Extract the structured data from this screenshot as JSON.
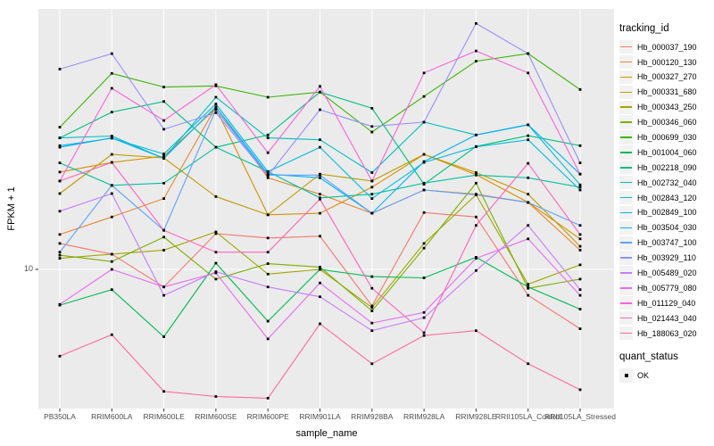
{
  "chart_data": {
    "type": "line",
    "xlabel": "sample_name",
    "ylabel": "FPKM + 1",
    "y_scale": "log10",
    "y_tick_labels": [
      "10"
    ],
    "y_tick_values": [
      10
    ],
    "panel_bg": "#ebebeb",
    "grid_color": "#ffffff",
    "point_color": "#000000",
    "point_shape": "filled-square",
    "x_categories": [
      "PB350LA",
      "RRIM600LA",
      "RRIM600LE",
      "RRIM600SE",
      "RRIM600PE",
      "RRIM901LA",
      "RRIM928BA",
      "RRIM928LA",
      "RRIM928LE",
      "RRII105LA_Control",
      "RRII105LA_Stressed"
    ],
    "series": [
      {
        "name": "Hb_000037_190",
        "color": "#F8766D",
        "values": [
          12.5,
          11.4,
          8.6,
          13.6,
          13.1,
          13.3,
          7.3,
          16.3,
          15.7,
          8.0,
          6.0
        ]
      },
      {
        "name": "Hb_000120_130",
        "color": "#EA8331",
        "values": [
          13.5,
          15.7,
          18.4,
          40.5,
          22.0,
          19.1,
          16.2,
          19.8,
          19.1,
          17.8,
          11.8
        ]
      },
      {
        "name": "Hb_000327_270",
        "color": "#D89000",
        "values": [
          23.1,
          25.1,
          26.5,
          40.0,
          16.0,
          16.2,
          20.3,
          26.9,
          22.6,
          17.8,
          13.0
        ]
      },
      {
        "name": "Hb_000331_680",
        "color": "#C09B00",
        "values": [
          19.2,
          26.9,
          26.1,
          18.7,
          16.0,
          22.7,
          21.4,
          26.9,
          23.0,
          19.1,
          12.2
        ]
      },
      {
        "name": "Hb_000343_250",
        "color": "#A3A500",
        "values": [
          11.0,
          11.4,
          11.8,
          13.8,
          9.6,
          10.0,
          7.2,
          12.5,
          19.0,
          8.8,
          10.4
        ]
      },
      {
        "name": "Hb_000346_060",
        "color": "#7CAE00",
        "values": [
          11.3,
          10.7,
          13.2,
          9.2,
          10.5,
          10.2,
          7.0,
          12.0,
          21.0,
          8.5,
          9.2
        ]
      },
      {
        "name": "Hb_000699_030",
        "color": "#39B600",
        "values": [
          34.0,
          54.0,
          48.0,
          48.5,
          44.0,
          46.0,
          32.6,
          44.3,
          60.0,
          64.0,
          47.0
        ]
      },
      {
        "name": "Hb_001004_060",
        "color": "#00BB4E",
        "values": [
          7.35,
          8.4,
          5.6,
          10.55,
          6.4,
          10.0,
          9.4,
          9.3,
          11.1,
          8.6,
          7.1
        ]
      },
      {
        "name": "Hb_002218_090",
        "color": "#00BF7D",
        "values": [
          31.0,
          38.7,
          42.4,
          28.6,
          31.8,
          46.0,
          40.0,
          20.8,
          28.8,
          31.6,
          29.0
        ]
      },
      {
        "name": "Hb_002732_040",
        "color": "#00C1A3",
        "values": [
          25.0,
          20.6,
          21.0,
          28.6,
          23.2,
          18.5,
          19.1,
          21.0,
          22.5,
          22.0,
          20.3
        ]
      },
      {
        "name": "Hb_002843_120",
        "color": "#00BFC4",
        "values": [
          31.0,
          31.5,
          26.0,
          44.0,
          31.0,
          30.5,
          23.0,
          35.5,
          31.8,
          34.7,
          20.7
        ]
      },
      {
        "name": "Hb_002849_100",
        "color": "#00BAE0",
        "values": [
          29.0,
          30.9,
          27.0,
          41.5,
          23.2,
          28.6,
          18.4,
          25.1,
          28.7,
          30.5,
          19.8
        ]
      },
      {
        "name": "Hb_003504_030",
        "color": "#00B0F6",
        "values": [
          28.6,
          31.0,
          26.0,
          40.5,
          22.7,
          22.0,
          16.2,
          25.3,
          31.8,
          34.7,
          22.7
        ]
      },
      {
        "name": "Hb_003747_100",
        "color": "#5BA3FF",
        "values": [
          11.6,
          20.6,
          14.0,
          39.5,
          22.5,
          22.5,
          16.2,
          19.8,
          19.0,
          17.8,
          14.6
        ]
      },
      {
        "name": "Hb_003929_110",
        "color": "#9590FF",
        "values": [
          56.0,
          64.0,
          33.4,
          38.5,
          22.4,
          39.5,
          34.2,
          35.5,
          83.0,
          64.0,
          25.0
        ]
      },
      {
        "name": "Hb_005489_020",
        "color": "#C77CFF",
        "values": [
          16.5,
          19.2,
          8.0,
          9.8,
          8.6,
          7.9,
          5.9,
          6.6,
          9.9,
          14.6,
          8.4
        ]
      },
      {
        "name": "Hb_005779_080",
        "color": "#E76BF3",
        "values": [
          7.4,
          10.0,
          8.6,
          9.7,
          5.5,
          8.9,
          6.3,
          6.9,
          11.0,
          13.0,
          8.0
        ]
      },
      {
        "name": "Hb_011129_040",
        "color": "#FA62DB",
        "values": [
          21.4,
          47.5,
          36.0,
          49.0,
          27.3,
          48.3,
          21.4,
          54.2,
          65.5,
          54.2,
          22.7
        ]
      },
      {
        "name": "Hb_021443_040",
        "color": "#FF62BC",
        "values": [
          21.4,
          25.1,
          14.0,
          11.6,
          11.6,
          18.3,
          8.5,
          5.8,
          14.6,
          24.9,
          13.5
        ]
      },
      {
        "name": "Hb_188063_020",
        "color": "#FF6A98",
        "values": [
          4.74,
          5.7,
          3.5,
          3.35,
          3.3,
          6.26,
          4.44,
          5.66,
          5.9,
          4.44,
          3.55
        ]
      }
    ]
  },
  "legend": {
    "tracking_title": "tracking_id",
    "quant_title": "quant_status",
    "quant_items": [
      {
        "label": "OK"
      }
    ]
  }
}
